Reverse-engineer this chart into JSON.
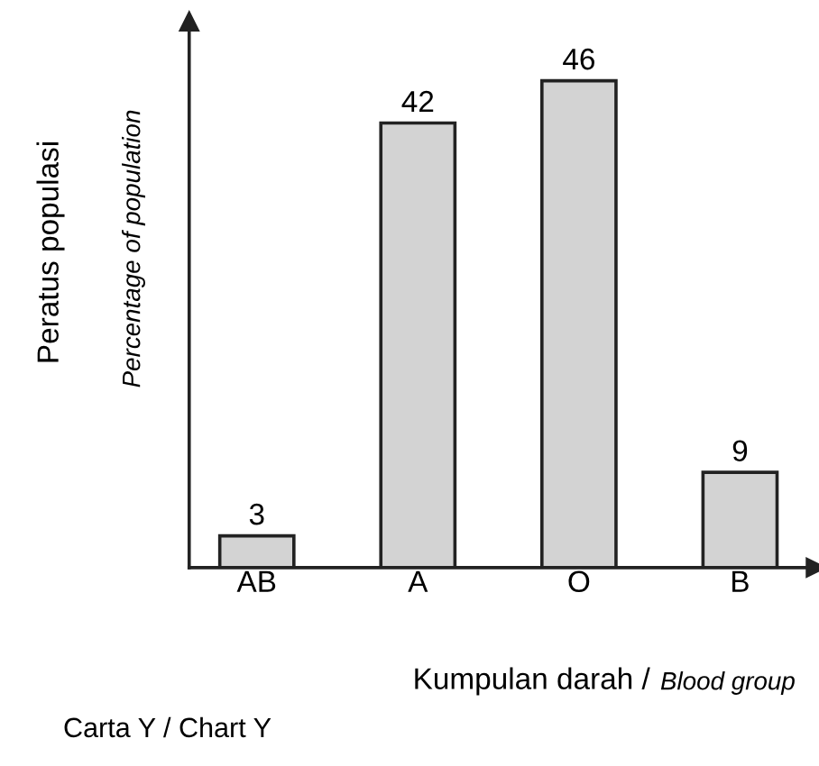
{
  "chart_data": {
    "type": "bar",
    "categories": [
      "AB",
      "A",
      "O",
      "B"
    ],
    "values": [
      3,
      42,
      46,
      9
    ],
    "color": "#d3d3d3",
    "ylim": [
      0,
      51.6
    ],
    "data_labels": true,
    "xlabel": [
      "Kumpulan darah / ",
      "Blood group"
    ],
    "ylabel": [
      "Peratus populasi",
      "Percentage of population"
    ],
    "annotations": [
      "Carta Y / Chart Y"
    ],
    "grid": false,
    "legend": false
  }
}
